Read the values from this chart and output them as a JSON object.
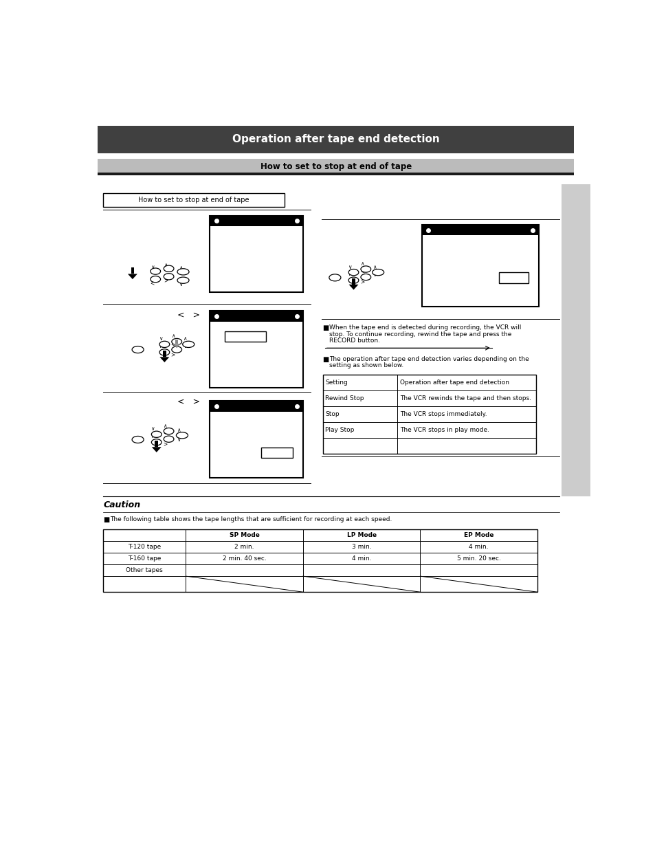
{
  "page_bg": "#ffffff",
  "header_bg": "#404040",
  "subheader_bg": "#bbbbbb",
  "subheader_line_bg": "#1a1a1a",
  "header_text": "Operation after tape end detection",
  "subheader_text": "How to set to stop at end of tape",
  "section_left_title": "How to set to stop at end of tape",
  "caution_title": "Caution",
  "sidebar_bg": "#cccccc",
  "note1_lines": [
    "When the tape end is detected during recording, the VCR will",
    "stop. To continue recording, rewind the tape and press the",
    "RECORD button."
  ],
  "note2_lines": [
    "The operation after tape end detection varies depending on the",
    "setting as shown below."
  ],
  "table_rows": [
    [
      "Setting",
      "Operation after tape end detection"
    ],
    [
      "Rewind Stop",
      "The VCR rewinds the tape and then stops."
    ],
    [
      "Stop",
      "The VCR stops immediately."
    ],
    [
      "Play Stop",
      "The VCR stops in play mode."
    ],
    [
      "",
      ""
    ]
  ],
  "caution_note": "The following table shows the tape lengths that are sufficient for recording at each speed.",
  "caution_table_headers": [
    "",
    "SP Mode",
    "LP Mode",
    "EP Mode"
  ],
  "caution_table_rows": [
    [
      "T-120 tape",
      "2 min.",
      "3 min.",
      "4 min."
    ],
    [
      "T-160 tape",
      "2 min. 40 sec.",
      "4 min.",
      "5 min. 20 sec."
    ],
    [
      "Other tapes",
      "",
      "",
      ""
    ]
  ]
}
